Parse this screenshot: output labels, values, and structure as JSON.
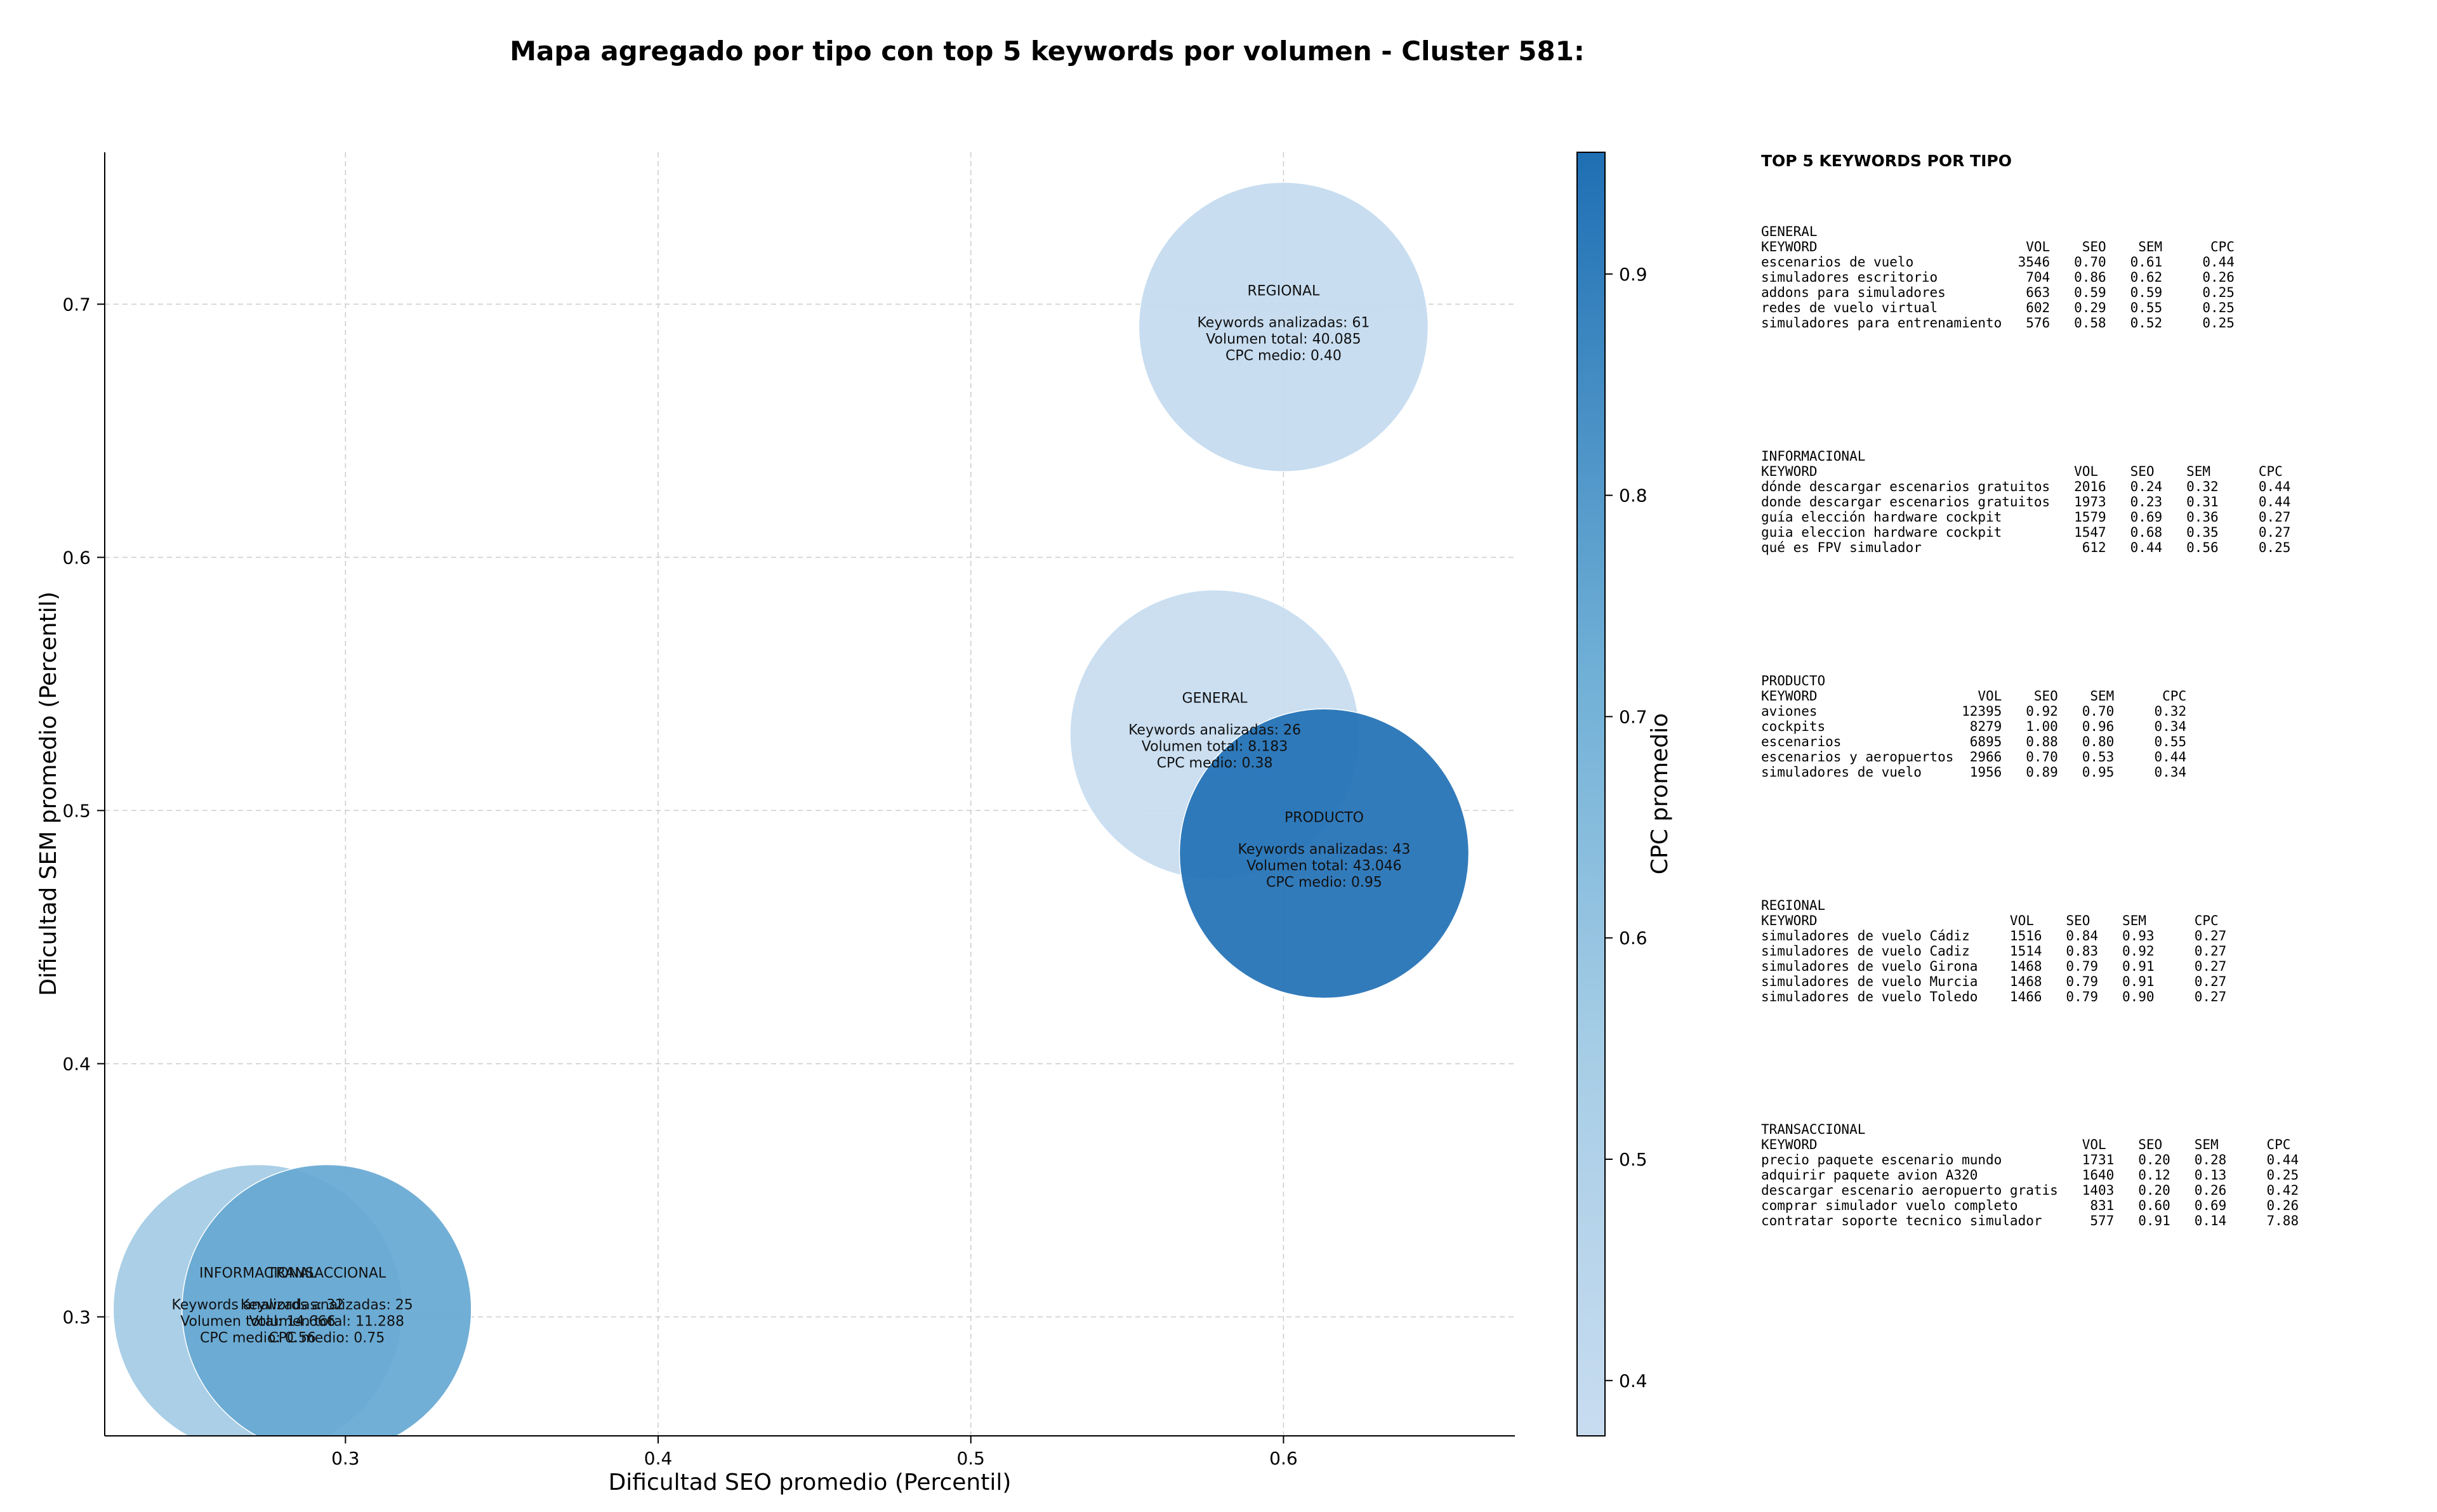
{
  "chart_data": {
    "type": "scatter",
    "title": "Mapa agregado por tipo con top 5 keywords por volumen - Cluster 581:",
    "xlabel": "Dificultad SEO promedio (Percentil)",
    "ylabel": "Dificultad SEM promedio (Percentil)",
    "xlim": [
      0.223,
      0.674
    ],
    "ylim": [
      0.253,
      0.76
    ],
    "xticks": [
      0.3,
      0.4,
      0.5,
      0.6
    ],
    "yticks": [
      0.3,
      0.4,
      0.5,
      0.6,
      0.7
    ],
    "grid": true,
    "colorbar": {
      "label": "CPC promedio",
      "range": [
        0.375,
        0.955
      ],
      "ticks": [
        0.4,
        0.5,
        0.6,
        0.7,
        0.8,
        0.9
      ],
      "colormap": [
        "#c8dcf0",
        "#1f6fb4"
      ]
    },
    "bubble_text": {
      "analyzed_prefix": "Keywords analizadas: ",
      "volume_prefix": "Volumen total: ",
      "cpc_prefix": "CPC medio: "
    },
    "bubbles": [
      {
        "label": "REGIONAL",
        "x": 0.6,
        "y": 0.691,
        "keywords": 61,
        "volume": "40.085",
        "cpc": 0.4,
        "cpc_text": "0.40"
      },
      {
        "label": "GENERAL",
        "x": 0.578,
        "y": 0.53,
        "keywords": 26,
        "volume": "8.183",
        "cpc": 0.38,
        "cpc_text": "0.38"
      },
      {
        "label": "PRODUCTO",
        "x": 0.613,
        "y": 0.483,
        "keywords": 43,
        "volume": "43.046",
        "cpc": 0.95,
        "cpc_text": "0.95"
      },
      {
        "label": "INFORMACIONAL",
        "x": 0.272,
        "y": 0.303,
        "keywords": 32,
        "volume": "14.666",
        "cpc": 0.56,
        "cpc_text": "0.56"
      },
      {
        "label": "TRANSACCIONAL",
        "x": 0.294,
        "y": 0.303,
        "keywords": 25,
        "volume": "11.288",
        "cpc": 0.75,
        "cpc_text": "0.75"
      }
    ]
  },
  "side_panel": {
    "heading": "TOP 5 KEYWORDS POR TIPO",
    "groups": [
      {
        "name": "GENERAL",
        "lines": [
          "KEYWORD                          VOL    SEO    SEM      CPC",
          "escenarios de vuelo             3546   0.70   0.61     0.44",
          "simuladores escritorio           704   0.86   0.62     0.26",
          "addons para simuladores          663   0.59   0.59     0.25",
          "redes de vuelo virtual           602   0.29   0.55     0.25",
          "simuladores para entrenamiento   576   0.58   0.52     0.25"
        ]
      },
      {
        "name": "INFORMACIONAL",
        "lines": [
          "KEYWORD                                VOL    SEO    SEM      CPC",
          "dónde descargar escenarios gratuitos   2016   0.24   0.32     0.44",
          "donde descargar escenarios gratuitos   1973   0.23   0.31     0.44",
          "guía elección hardware cockpit         1579   0.69   0.36     0.27",
          "guia eleccion hardware cockpit         1547   0.68   0.35     0.27",
          "qué es FPV simulador                    612   0.44   0.56     0.25"
        ]
      },
      {
        "name": "PRODUCTO",
        "lines": [
          "KEYWORD                    VOL    SEO    SEM      CPC",
          "aviones                  12395   0.92   0.70     0.32",
          "cockpits                  8279   1.00   0.96     0.34",
          "escenarios                6895   0.88   0.80     0.55",
          "escenarios y aeropuertos  2966   0.70   0.53     0.44",
          "simuladores de vuelo      1956   0.89   0.95     0.34"
        ]
      },
      {
        "name": "REGIONAL",
        "lines": [
          "KEYWORD                        VOL    SEO    SEM      CPC",
          "simuladores de vuelo Cádiz     1516   0.84   0.93     0.27",
          "simuladores de vuelo Cadiz     1514   0.83   0.92     0.27",
          "simuladores de vuelo Girona    1468   0.79   0.91     0.27",
          "simuladores de vuelo Murcia    1468   0.79   0.91     0.27",
          "simuladores de vuelo Toledo    1466   0.79   0.90     0.27"
        ]
      },
      {
        "name": "TRANSACCIONAL",
        "lines": [
          "KEYWORD                                 VOL    SEO    SEM      CPC",
          "precio paquete escenario mundo          1731   0.20   0.28     0.44",
          "adquirir paquete avion A320             1640   0.12   0.13     0.25",
          "descargar escenario aeropuerto gratis   1403   0.20   0.26     0.42",
          "comprar simulador vuelo completo         831   0.60   0.69     0.26",
          "contratar soporte tecnico simulador      577   0.91   0.14     7.88"
        ]
      }
    ]
  }
}
